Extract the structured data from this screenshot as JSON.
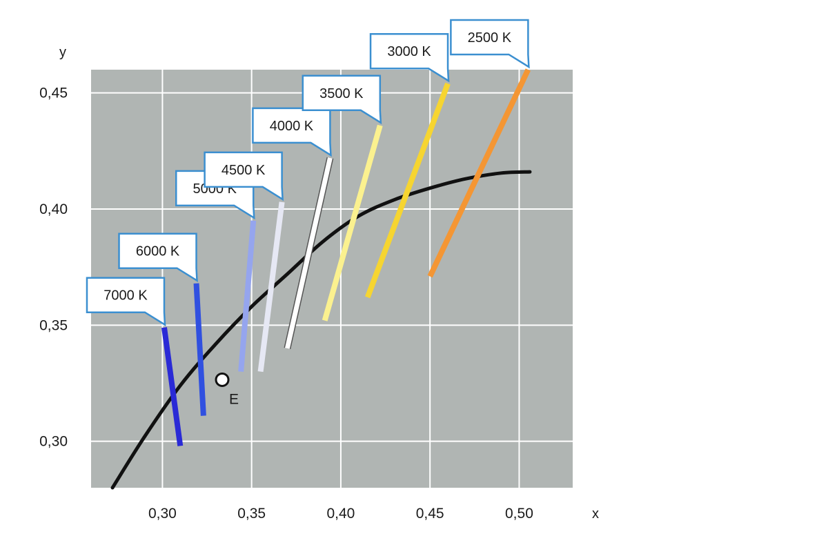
{
  "chart_data": {
    "type": "line",
    "title": "",
    "xlabel": "x",
    "ylabel": "y",
    "xlim": [
      0.26,
      0.53
    ],
    "ylim": [
      0.28,
      0.46
    ],
    "grid": true,
    "background_color": "#b0b5b3",
    "grid_color": "#ffffff",
    "x_ticks": [
      {
        "value": 0.3,
        "label": "0,30"
      },
      {
        "value": 0.35,
        "label": "0,35"
      },
      {
        "value": 0.4,
        "label": "0,40"
      },
      {
        "value": 0.45,
        "label": "0,45"
      },
      {
        "value": 0.5,
        "label": "0,50"
      }
    ],
    "y_ticks": [
      {
        "value": 0.3,
        "label": "0,30"
      },
      {
        "value": 0.35,
        "label": "0,35"
      },
      {
        "value": 0.4,
        "label": "0,40"
      },
      {
        "value": 0.45,
        "label": "0,45"
      }
    ],
    "planckian_locus": {
      "color": "#111111",
      "points": [
        {
          "x": 0.272,
          "y": 0.28
        },
        {
          "x": 0.29,
          "y": 0.302
        },
        {
          "x": 0.31,
          "y": 0.324
        },
        {
          "x": 0.33,
          "y": 0.342
        },
        {
          "x": 0.35,
          "y": 0.358
        },
        {
          "x": 0.37,
          "y": 0.372
        },
        {
          "x": 0.39,
          "y": 0.386
        },
        {
          "x": 0.41,
          "y": 0.397
        },
        {
          "x": 0.43,
          "y": 0.404
        },
        {
          "x": 0.45,
          "y": 0.409
        },
        {
          "x": 0.47,
          "y": 0.413
        },
        {
          "x": 0.49,
          "y": 0.4155
        },
        {
          "x": 0.506,
          "y": 0.416
        }
      ]
    },
    "isotherms": [
      {
        "label": "7000 K",
        "color": "#2a2ad6",
        "x1": 0.301,
        "y1": 0.349,
        "x2": 0.31,
        "y2": 0.298
      },
      {
        "label": "6000 K",
        "color": "#3050e0",
        "x1": 0.319,
        "y1": 0.368,
        "x2": 0.323,
        "y2": 0.311
      },
      {
        "label": "5000 K",
        "color": "#95a5ee",
        "x1": 0.351,
        "y1": 0.395,
        "x2": 0.344,
        "y2": 0.33
      },
      {
        "label": "4500 K",
        "color": "#e6e8f4",
        "x1": 0.367,
        "y1": 0.403,
        "x2": 0.355,
        "y2": 0.33
      },
      {
        "label": "4000 K",
        "color": "#ffffff",
        "x1": 0.394,
        "y1": 0.422,
        "x2": 0.37,
        "y2": 0.34
      },
      {
        "label": "3500 K",
        "color": "#fbf18f",
        "x1": 0.422,
        "y1": 0.436,
        "x2": 0.391,
        "y2": 0.352
      },
      {
        "label": "3000 K",
        "color": "#f6d531",
        "x1": 0.46,
        "y1": 0.454,
        "x2": 0.415,
        "y2": 0.362
      },
      {
        "label": "2500 K",
        "color": "#f49634",
        "x1": 0.505,
        "y1": 0.46,
        "x2": 0.45,
        "y2": 0.371
      }
    ],
    "points": [
      {
        "label": "E",
        "x": 0.3335,
        "y": 0.3265
      }
    ]
  }
}
